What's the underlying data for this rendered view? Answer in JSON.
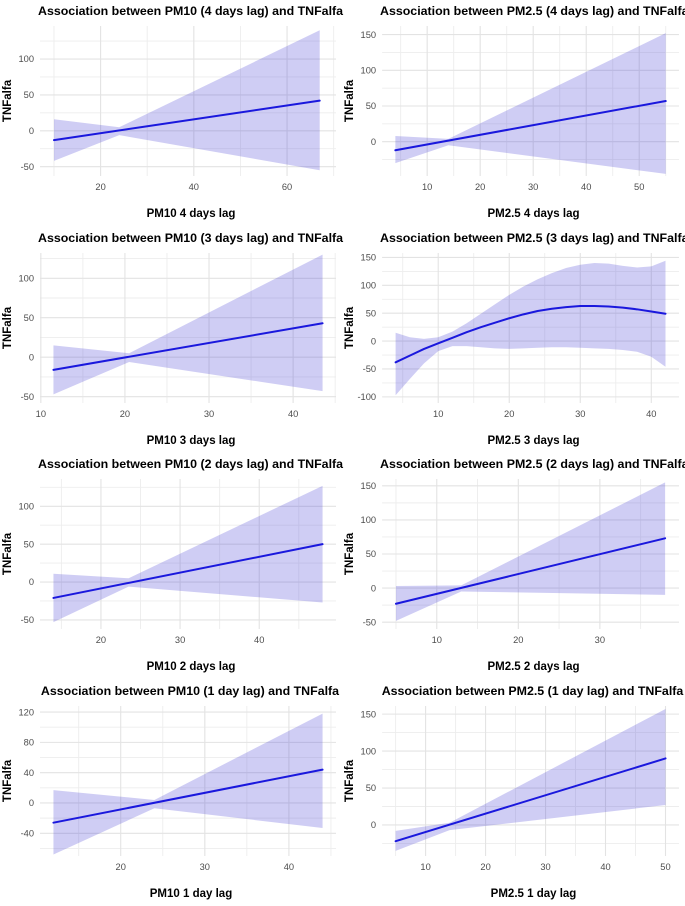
{
  "style": {
    "background": "#ffffff",
    "title_color": "#000000",
    "axis_label_color": "#000000",
    "tick_label_color": "#4d4d4d",
    "grid_major_color": "#e3e3e3",
    "grid_minor_color": "#ededed",
    "line_color": "#1a18dd",
    "ribbon_color": "rgba(76,72,216,0.27)"
  },
  "chart_data": [
    {
      "type": "line",
      "title": "Association between PM10 (4 days lag) and TNFalfa",
      "xlabel": "PM10 4 days lag",
      "ylabel": "TNFalfa",
      "xlim": [
        7,
        70.5
      ],
      "ylim": [
        -63,
        146
      ],
      "xticks": [
        20,
        40,
        60
      ],
      "xminor": [
        10,
        30,
        50,
        70
      ],
      "yticks": [
        -50,
        0,
        50,
        100
      ],
      "yminor": [
        -25,
        25,
        75,
        125
      ],
      "line": {
        "x": [
          10,
          67
        ],
        "y": [
          -13,
          42
        ]
      },
      "ribbon": {
        "x": [
          10,
          24,
          67
        ],
        "upper": [
          16,
          5,
          140
        ],
        "lower": [
          -42,
          -6,
          -55
        ]
      }
    },
    {
      "type": "line",
      "title": "Association between PM2.5 (4 days lag) and TNFalfa",
      "xlabel": "PM2.5 4 days lag",
      "ylabel": "TNFalfa",
      "xlim": [
        1.5,
        57.5
      ],
      "ylim": [
        -48,
        162
      ],
      "xticks": [
        10,
        20,
        30,
        40,
        50
      ],
      "xminor": [
        5,
        15,
        25,
        35,
        45,
        55
      ],
      "yticks": [
        0,
        50,
        100,
        150
      ],
      "yminor": [
        -25,
        25,
        75,
        125
      ],
      "line": {
        "x": [
          4,
          55
        ],
        "y": [
          -12,
          57
        ]
      },
      "ribbon": {
        "x": [
          4,
          14,
          55
        ],
        "upper": [
          8,
          4,
          152
        ],
        "lower": [
          -30,
          -5,
          -45
        ]
      }
    },
    {
      "type": "line",
      "title": "Association between PM10 (3 days lag) and TNFalfa",
      "xlabel": "PM10 3 days lag",
      "ylabel": "TNFalfa",
      "xlim": [
        9.9,
        45.1
      ],
      "ylim": [
        -58,
        132
      ],
      "xticks": [
        10,
        20,
        30,
        40
      ],
      "xminor": [
        15,
        25,
        35,
        45
      ],
      "yticks": [
        -50,
        0,
        50,
        100
      ],
      "yminor": [
        -25,
        25,
        75,
        125
      ],
      "line": {
        "x": [
          11.5,
          43.5
        ],
        "y": [
          -16,
          43
        ]
      },
      "ribbon": {
        "x": [
          11.5,
          20.5,
          43.5
        ],
        "upper": [
          15,
          5,
          130
        ],
        "lower": [
          -47,
          -6,
          -43
        ]
      }
    },
    {
      "type": "line",
      "title": "Association between PM2.5 (3 days lag) and TNFalfa",
      "xlabel": "PM2.5 3 days lag",
      "ylabel": "TNFalfa",
      "xlim": [
        2.1,
        43.9
      ],
      "ylim": [
        -111,
        158
      ],
      "xticks": [
        10,
        20,
        30,
        40
      ],
      "xminor": [
        5,
        15,
        25,
        35
      ],
      "yticks": [
        -100,
        -50,
        0,
        50,
        100,
        150
      ],
      "yminor": [
        -75,
        -25,
        25,
        75,
        125
      ],
      "line": {
        "x": [
          4,
          6,
          8,
          10,
          12,
          14,
          16,
          18,
          20,
          22,
          24,
          26,
          28,
          30,
          32,
          34,
          36,
          38,
          40,
          42
        ],
        "y": [
          -38,
          -26,
          -14,
          -4,
          6,
          16,
          25,
          33,
          41,
          48,
          54,
          58,
          61,
          63,
          63,
          62,
          60,
          57,
          53,
          49
        ]
      },
      "ribbon": {
        "x": [
          4,
          6,
          8,
          10,
          12,
          14,
          16,
          18,
          20,
          22,
          24,
          26,
          28,
          30,
          32,
          34,
          36,
          38,
          40,
          42
        ],
        "upper": [
          15,
          7,
          4,
          7,
          17,
          32,
          49,
          66,
          83,
          98,
          111,
          122,
          131,
          137,
          140,
          139,
          135,
          132,
          134,
          144
        ],
        "lower": [
          -97,
          -68,
          -40,
          -18,
          -9,
          -9,
          -11,
          -13,
          -14,
          -13,
          -12,
          -11,
          -11,
          -12,
          -13,
          -14,
          -16,
          -19,
          -28,
          -46
        ]
      }
    },
    {
      "type": "line",
      "title": "Association between PM10 (2 days lag) and TNFalfa",
      "xlabel": "PM10 2 days lag",
      "ylabel": "TNFalfa",
      "xlim": [
        12.3,
        49.7
      ],
      "ylim": [
        -62,
        136
      ],
      "xticks": [
        20,
        30,
        40
      ],
      "xminor": [
        15,
        25,
        35,
        45
      ],
      "yticks": [
        -50,
        0,
        50,
        100
      ],
      "yminor": [
        -25,
        25,
        75,
        125
      ],
      "line": {
        "x": [
          14,
          48
        ],
        "y": [
          -21,
          50
        ]
      },
      "ribbon": {
        "x": [
          14,
          23.5,
          48
        ],
        "upper": [
          11,
          5,
          127
        ],
        "lower": [
          -53,
          -6,
          -27
        ]
      }
    },
    {
      "type": "line",
      "title": "Association between PM2.5 (2 days lag) and TNFalfa",
      "xlabel": "PM2.5 2 days lag",
      "ylabel": "TNFalfa",
      "xlim": [
        3.3,
        39.7
      ],
      "ylim": [
        -60,
        160
      ],
      "xticks": [
        10,
        20,
        30
      ],
      "xminor": [
        5,
        15,
        25,
        35
      ],
      "yticks": [
        -50,
        0,
        50,
        100,
        150
      ],
      "yminor": [
        -25,
        25,
        75,
        125
      ],
      "line": {
        "x": [
          5,
          38
        ],
        "y": [
          -23,
          73
        ]
      },
      "ribbon": {
        "x": [
          5,
          13,
          38
        ],
        "upper": [
          3,
          4,
          155
        ],
        "lower": [
          -48,
          -5,
          -10
        ]
      }
    },
    {
      "type": "line",
      "title": "Association between PM10 (1 day lag) and TNFalfa",
      "xlabel": "PM10 1 day lag",
      "ylabel": "TNFalfa",
      "xlim": [
        10.4,
        45.6
      ],
      "ylim": [
        -70,
        128
      ],
      "xticks": [
        20,
        30,
        40
      ],
      "xminor": [
        15,
        25,
        35,
        45
      ],
      "yticks": [
        -40,
        0,
        40,
        80,
        120
      ],
      "yminor": [
        -60,
        -20,
        20,
        60,
        100
      ],
      "line": {
        "x": [
          12,
          44
        ],
        "y": [
          -26,
          44
        ]
      },
      "ribbon": {
        "x": [
          12,
          24,
          44
        ],
        "upper": [
          17,
          4,
          118
        ],
        "lower": [
          -68,
          -7,
          -33
        ]
      }
    },
    {
      "type": "line",
      "title": "Association between PM2.5 (1 day lag) and TNFalfa",
      "xlabel": "PM2.5 1 day lag",
      "ylabel": "TNFalfa",
      "xlim": [
        2.75,
        52.25
      ],
      "ylim": [
        -42,
        161
      ],
      "xticks": [
        10,
        20,
        30,
        40,
        50
      ],
      "xminor": [
        5,
        15,
        25,
        35,
        45
      ],
      "yticks": [
        0,
        50,
        100,
        150
      ],
      "yminor": [
        -25,
        25,
        75,
        125
      ],
      "line": {
        "x": [
          5,
          50
        ],
        "y": [
          -22,
          90
        ]
      },
      "ribbon": {
        "x": [
          5,
          14,
          50
        ],
        "upper": [
          -8,
          3,
          157
        ],
        "lower": [
          -35,
          -7,
          27
        ]
      }
    }
  ]
}
